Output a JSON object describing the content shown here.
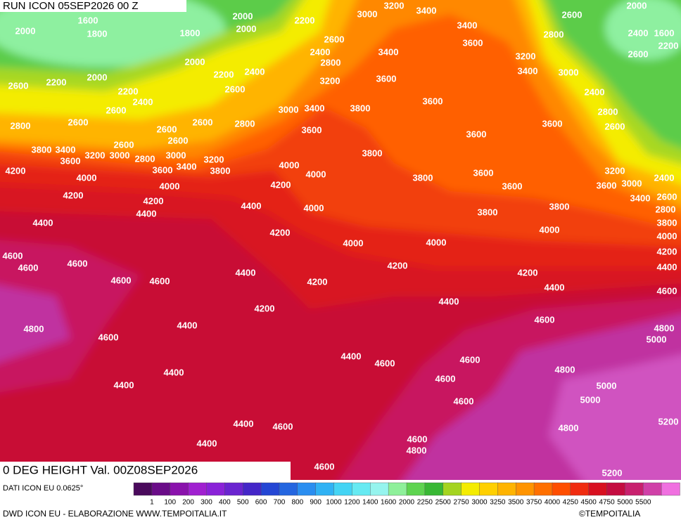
{
  "header": {
    "run": "RUN ICON 05SEP2026 00 Z",
    "field": "0 DEG HEIGHT Val. 00Z08SEP2026"
  },
  "map": {
    "contour_labels": [
      2000,
      1600,
      1800,
      2000,
      2000,
      2200,
      3000,
      3200,
      3400,
      1800,
      2000,
      2600,
      2400,
      2800,
      3400,
      3400,
      2800,
      2600,
      2000,
      2400,
      1600,
      2200,
      2600,
      3600,
      3200,
      3400,
      3000,
      2000,
      2200,
      2600,
      2200,
      2400,
      2600,
      3200,
      3600,
      2200,
      2400,
      2400,
      3600,
      3800,
      3000,
      3400,
      2600,
      2800,
      2600,
      2600,
      2800,
      2800,
      2600,
      3600,
      3600,
      3600,
      2600,
      2600,
      2600,
      3800,
      3400,
      3600,
      3200,
      3000,
      2800,
      3000,
      3200,
      3800,
      3600,
      3400,
      3800,
      4000,
      3200,
      4200,
      4000,
      4000,
      3800,
      3600,
      3600,
      3600,
      3000,
      2400,
      4000,
      4200,
      4200,
      4200,
      3400,
      2600,
      4400,
      4000,
      3800,
      2800,
      4400,
      3800,
      4400,
      3800,
      4000,
      4200,
      4000,
      4000,
      4000,
      4600,
      4200,
      4600,
      4600,
      4200,
      4400,
      4400,
      4200,
      4600,
      4600,
      4200,
      4400,
      4600,
      4200,
      4400,
      4600,
      4800,
      4400,
      4800,
      4600,
      5000,
      4400,
      4600,
      4600,
      4800,
      4400,
      4600,
      5000,
      4400,
      4600,
      5000,
      5200,
      4400,
      4600,
      4800,
      4600,
      4400,
      4800,
      4600,
      5200
    ]
  },
  "legend": {
    "source": "DATI ICON EU 0.0625°",
    "colors": [
      "#4a0a5c",
      "#6a0c88",
      "#8a12ac",
      "#a020d0",
      "#8a22d8",
      "#6a24d0",
      "#4426c8",
      "#2446d4",
      "#2466e0",
      "#2a8ef0",
      "#30b2f4",
      "#44d4f4",
      "#66eaf2",
      "#96f4ee",
      "#8ef09a",
      "#5ed450",
      "#38b834",
      "#a4d420",
      "#f4ec00",
      "#ffd000",
      "#ffb400",
      "#ff9400",
      "#ff7000",
      "#ff4e00",
      "#f02c10",
      "#d81020",
      "#c40c40",
      "#c8206e",
      "#d040a8",
      "#f070e0"
    ],
    "labels": [
      "1",
      "100",
      "200",
      "300",
      "400",
      "500",
      "600",
      "700",
      "800",
      "900",
      "1000",
      "1200",
      "1400",
      "1600",
      "2000",
      "2250",
      "2500",
      "2750",
      "3000",
      "3250",
      "3500",
      "3750",
      "4000",
      "4250",
      "4500",
      "4750",
      "5000",
      "5500"
    ]
  },
  "footer": {
    "credit": "DWD ICON EU - ELABORAZIONE WWW.TEMPOITALIA.IT",
    "copyright": "©TEMPOITALIA"
  }
}
